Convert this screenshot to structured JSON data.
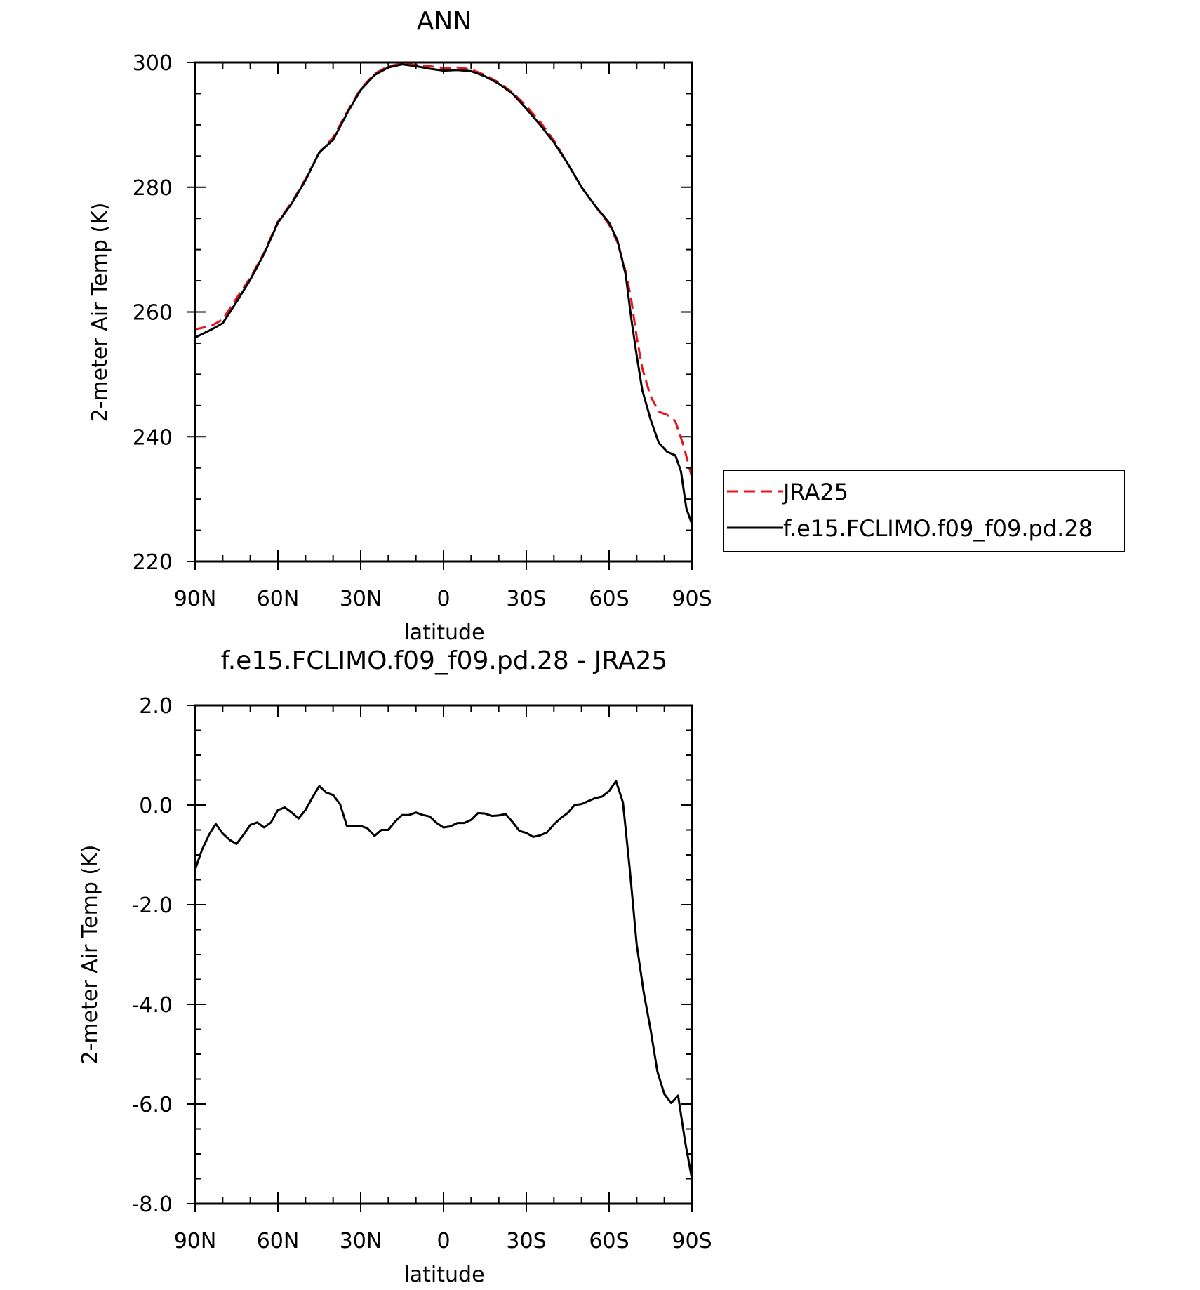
{
  "chart_data": [
    {
      "type": "line",
      "title": "ANN",
      "xlabel": "latitude",
      "ylabel": "2-meter Air Temp (K)",
      "xlim": [
        90,
        -90
      ],
      "ylim": [
        220,
        300
      ],
      "x_ticks": [
        90,
        60,
        30,
        0,
        -30,
        -60,
        -90
      ],
      "x_tick_labels": [
        "90N",
        "60N",
        "30N",
        "0",
        "30S",
        "60S",
        "90S"
      ],
      "y_ticks": [
        220,
        240,
        260,
        280,
        300
      ],
      "y_tick_labels": [
        "220",
        "240",
        "260",
        "280",
        "300"
      ],
      "grid": false,
      "legend": "right",
      "series": [
        {
          "name": "JRA25",
          "color": "#e8141c",
          "dash": "dashed",
          "points": [
            [
              90,
              257.2
            ],
            [
              84,
              257.8
            ],
            [
              80,
              258.8
            ],
            [
              75,
              262.2
            ],
            [
              70,
              265.5
            ],
            [
              65,
              269.5
            ],
            [
              60,
              274.5
            ],
            [
              55,
              277.6
            ],
            [
              50,
              281.3
            ],
            [
              45,
              285.5
            ],
            [
              40,
              288.0
            ],
            [
              35,
              292.0
            ],
            [
              30,
              295.8
            ],
            [
              25,
              298.2
            ],
            [
              20,
              299.4
            ],
            [
              15,
              299.8
            ],
            [
              10,
              299.6
            ],
            [
              5,
              299.4
            ],
            [
              0,
              299.1
            ],
            [
              -5,
              299.2
            ],
            [
              -10,
              298.9
            ],
            [
              -15,
              298.0
            ],
            [
              -20,
              296.8
            ],
            [
              -25,
              295.2
            ],
            [
              -30,
              293.0
            ],
            [
              -35,
              290.5
            ],
            [
              -40,
              287.5
            ],
            [
              -45,
              283.8
            ],
            [
              -50,
              280.0
            ],
            [
              -55,
              277.0
            ],
            [
              -60,
              274.0
            ],
            [
              -63,
              271.2
            ],
            [
              -66,
              266.5
            ],
            [
              -68,
              262.0
            ],
            [
              -70,
              256.0
            ],
            [
              -72,
              251.0
            ],
            [
              -75,
              246.5
            ],
            [
              -78,
              244.0
            ],
            [
              -81,
              243.5
            ],
            [
              -84,
              242.5
            ],
            [
              -87,
              238.5
            ],
            [
              -90,
              233.5
            ]
          ]
        },
        {
          "name": "f.e15.FCLIMO.f09_f09.pd.28",
          "color": "#000000",
          "dash": "solid",
          "points": [
            [
              90,
              255.9
            ],
            [
              84,
              257.2
            ],
            [
              80,
              258.2
            ],
            [
              75,
              261.6
            ],
            [
              70,
              265.2
            ],
            [
              65,
              269.3
            ],
            [
              60,
              274.3
            ],
            [
              55,
              277.4
            ],
            [
              50,
              281.1
            ],
            [
              45,
              285.6
            ],
            [
              40,
              287.6
            ],
            [
              35,
              291.8
            ],
            [
              30,
              295.6
            ],
            [
              25,
              298.0
            ],
            [
              20,
              299.2
            ],
            [
              15,
              299.7
            ],
            [
              10,
              299.4
            ],
            [
              5,
              299.0
            ],
            [
              0,
              298.7
            ],
            [
              -5,
              298.8
            ],
            [
              -10,
              298.6
            ],
            [
              -15,
              297.8
            ],
            [
              -20,
              296.6
            ],
            [
              -25,
              295.0
            ],
            [
              -30,
              292.6
            ],
            [
              -35,
              290.0
            ],
            [
              -40,
              287.2
            ],
            [
              -45,
              283.8
            ],
            [
              -50,
              280.0
            ],
            [
              -55,
              277.0
            ],
            [
              -60,
              274.3
            ],
            [
              -63,
              271.5
            ],
            [
              -66,
              266.0
            ],
            [
              -68,
              259.0
            ],
            [
              -70,
              253.0
            ],
            [
              -72,
              247.5
            ],
            [
              -75,
              242.8
            ],
            [
              -78,
              239.0
            ],
            [
              -81,
              237.6
            ],
            [
              -84,
              237.0
            ],
            [
              -86,
              234.5
            ],
            [
              -88,
              228.5
            ],
            [
              -90,
              226.0
            ]
          ]
        }
      ]
    },
    {
      "type": "line",
      "title": "f.e15.FCLIMO.f09_f09.pd.28 - JRA25",
      "xlabel": "latitude",
      "ylabel": "2-meter Air Temp (K)",
      "xlim": [
        90,
        -90
      ],
      "ylim": [
        -8,
        2
      ],
      "x_ticks": [
        90,
        60,
        30,
        0,
        -30,
        -60,
        -90
      ],
      "x_tick_labels": [
        "90N",
        "60N",
        "30N",
        "0",
        "30S",
        "60S",
        "90S"
      ],
      "y_ticks": [
        2,
        0,
        -2,
        -4,
        -6,
        -8
      ],
      "y_tick_labels": [
        "2.0",
        "0.0",
        "-2.0",
        "-4.0",
        "-6.0",
        "-8.0"
      ],
      "grid": false,
      "series": [
        {
          "color": "#000000",
          "dash": "solid",
          "points": [
            [
              90,
              -1.3
            ],
            [
              87.5,
              -0.9
            ],
            [
              85,
              -0.6
            ],
            [
              82.5,
              -0.38
            ],
            [
              80,
              -0.57
            ],
            [
              77.5,
              -0.7
            ],
            [
              75,
              -0.78
            ],
            [
              72.5,
              -0.6
            ],
            [
              70,
              -0.4
            ],
            [
              67.5,
              -0.35
            ],
            [
              65,
              -0.45
            ],
            [
              62.5,
              -0.35
            ],
            [
              60,
              -0.1
            ],
            [
              57.5,
              -0.05
            ],
            [
              55,
              -0.15
            ],
            [
              52.5,
              -0.27
            ],
            [
              50,
              -0.1
            ],
            [
              47.5,
              0.15
            ],
            [
              45,
              0.38
            ],
            [
              42.5,
              0.25
            ],
            [
              40,
              0.2
            ],
            [
              37.5,
              0.02
            ],
            [
              35,
              -0.42
            ],
            [
              32.5,
              -0.43
            ],
            [
              30,
              -0.42
            ],
            [
              27.5,
              -0.47
            ],
            [
              25,
              -0.62
            ],
            [
              22.5,
              -0.5
            ],
            [
              20,
              -0.5
            ],
            [
              17.5,
              -0.33
            ],
            [
              15,
              -0.2
            ],
            [
              12.5,
              -0.2
            ],
            [
              10,
              -0.15
            ],
            [
              7.5,
              -0.2
            ],
            [
              5,
              -0.23
            ],
            [
              2.5,
              -0.36
            ],
            [
              0,
              -0.45
            ],
            [
              -2.5,
              -0.43
            ],
            [
              -5,
              -0.36
            ],
            [
              -7.5,
              -0.36
            ],
            [
              -10,
              -0.3
            ],
            [
              -12.5,
              -0.16
            ],
            [
              -15,
              -0.17
            ],
            [
              -17.5,
              -0.22
            ],
            [
              -20,
              -0.21
            ],
            [
              -22.5,
              -0.18
            ],
            [
              -25,
              -0.34
            ],
            [
              -27.5,
              -0.52
            ],
            [
              -30,
              -0.56
            ],
            [
              -32.5,
              -0.64
            ],
            [
              -35,
              -0.61
            ],
            [
              -37.5,
              -0.55
            ],
            [
              -40,
              -0.39
            ],
            [
              -42.5,
              -0.26
            ],
            [
              -45,
              -0.16
            ],
            [
              -47.5,
              0.0
            ],
            [
              -50,
              0.02
            ],
            [
              -52.5,
              0.08
            ],
            [
              -55,
              0.14
            ],
            [
              -57.5,
              0.17
            ],
            [
              -60,
              0.28
            ],
            [
              -62.5,
              0.48
            ],
            [
              -65,
              0.05
            ],
            [
              -67.5,
              -1.3
            ],
            [
              -70,
              -2.8
            ],
            [
              -72.5,
              -3.75
            ],
            [
              -75,
              -4.5
            ],
            [
              -77.5,
              -5.35
            ],
            [
              -80,
              -5.8
            ],
            [
              -82.5,
              -5.98
            ],
            [
              -85,
              -5.83
            ],
            [
              -87.5,
              -6.75
            ],
            [
              -90,
              -7.5
            ]
          ]
        }
      ]
    }
  ]
}
